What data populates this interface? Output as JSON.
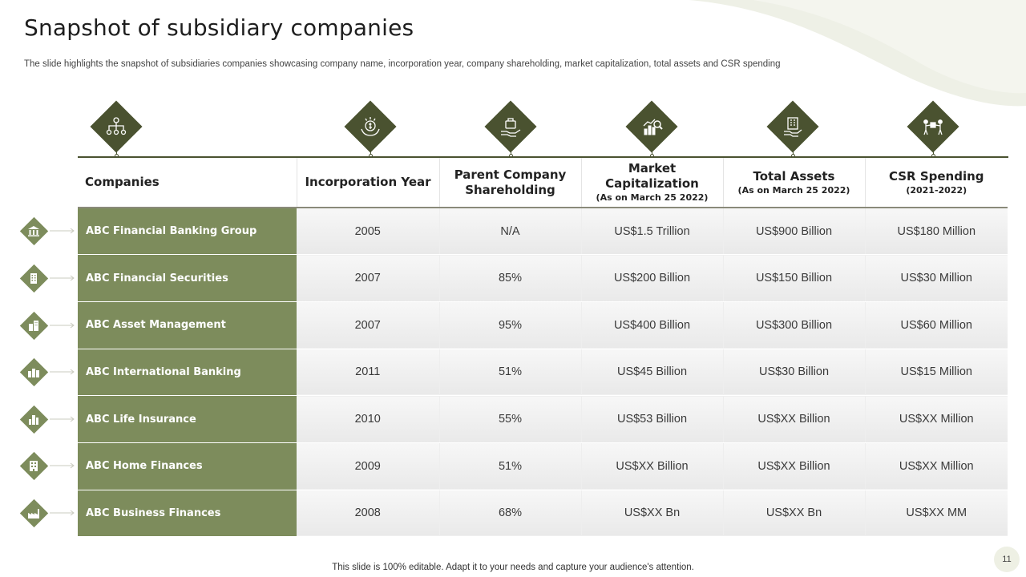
{
  "title": "Snapshot of subsidiary companies",
  "subtitle": "The slide highlights the snapshot of subsidiaries companies showcasing company name, incorporation year, company shareholding, market capitalization, total assets and CSR spending",
  "colors": {
    "dark_green": "#4a5230",
    "olive": "#7d8c5c",
    "cell_bg": "#efefef"
  },
  "header_icons": [
    "org-chart-icon",
    "money-hands-icon",
    "donation-hand-icon",
    "growth-chart-icon",
    "building-hand-icon",
    "people-collaboration-icon"
  ],
  "table": {
    "headers": [
      {
        "main": "Companies",
        "sub": ""
      },
      {
        "main": "Incorporation Year",
        "sub": ""
      },
      {
        "main": "Parent Company Shareholding",
        "sub": ""
      },
      {
        "main": "Market Capitalization",
        "sub": "(As on March 25 2022)"
      },
      {
        "main": "Total Assets",
        "sub": "(As on March 25 2022)"
      },
      {
        "main": "CSR Spending",
        "sub": "(2021-2022)"
      }
    ],
    "rows": [
      {
        "icon": "bank-building-icon",
        "company": "ABC Financial Banking Group",
        "year": "2005",
        "shareholding": "N/A",
        "market_cap": "US$1.5 Trillion",
        "total_assets": "US$900 Billion",
        "csr": "US$180 Million"
      },
      {
        "icon": "office-building-icon",
        "company": "ABC Financial Securities",
        "year": "2007",
        "shareholding": "85%",
        "market_cap": "US$200 Billion",
        "total_assets": "US$150 Billion",
        "csr": "US$30 Million"
      },
      {
        "icon": "office-tower-icon",
        "company": "ABC Asset Management",
        "year": "2007",
        "shareholding": "95%",
        "market_cap": "US$400 Billion",
        "total_assets": "US$300 Billion",
        "csr": "US$60 Million"
      },
      {
        "icon": "city-buildings-icon",
        "company": "ABC International Banking",
        "year": "2011",
        "shareholding": "51%",
        "market_cap": "US$45 Billion",
        "total_assets": "US$30 Billion",
        "csr": "US$15 Million"
      },
      {
        "icon": "skyline-icon",
        "company": "ABC Life Insurance",
        "year": "2010",
        "shareholding": "55%",
        "market_cap": "US$53 Billion",
        "total_assets": "US$XX Billion",
        "csr": "US$XX Million"
      },
      {
        "icon": "apartment-building-icon",
        "company": "ABC Home Finances",
        "year": "2009",
        "shareholding": "51%",
        "market_cap": "US$XX Billion",
        "total_assets": "US$XX Billion",
        "csr": "US$XX Million"
      },
      {
        "icon": "factory-icon",
        "company": "ABC Business Finances",
        "year": "2008",
        "shareholding": "68%",
        "market_cap": "US$XX Bn",
        "total_assets": "US$XX Bn",
        "csr": "US$XX MM"
      }
    ]
  },
  "footer": "This slide is 100% editable. Adapt it to your needs and capture your audience's attention.",
  "page_number": "11"
}
